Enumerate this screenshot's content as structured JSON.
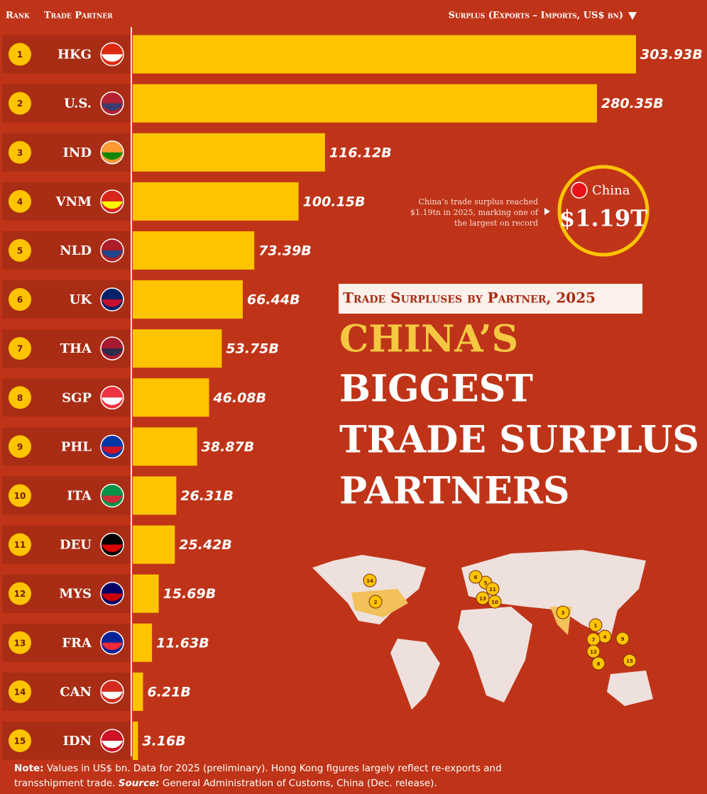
{
  "chart_data": {
    "type": "bar",
    "orientation": "horizontal",
    "title_lines": [
      "CHINA’S",
      "BIGGEST",
      "TRADE SURPLUS",
      "PARTNERS"
    ],
    "subtitle": "Trade Surpluses by Partner, 2025",
    "column_headers": {
      "rank": "Rank",
      "partner": "Trade Partner",
      "value": "Surplus (Exports – Imports, US$ bn)"
    },
    "ranks": [
      1,
      2,
      3,
      4,
      5,
      6,
      7,
      8,
      9,
      10,
      11,
      12,
      13,
      14,
      15
    ],
    "categories": [
      "HKG",
      "U.S.",
      "IND",
      "VNM",
      "NLD",
      "UK",
      "THA",
      "SGP",
      "PHL",
      "ITA",
      "DEU",
      "MYS",
      "FRA",
      "CAN",
      "IDN"
    ],
    "values": [
      303.93,
      280.35,
      116.12,
      100.15,
      73.39,
      66.44,
      53.75,
      46.08,
      38.87,
      26.31,
      25.42,
      15.69,
      11.63,
      6.21,
      3.16
    ],
    "value_labels": [
      "303.93B",
      "280.35B",
      "116.12B",
      "100.15B",
      "73.39B",
      "66.44B",
      "53.75B",
      "46.08B",
      "38.87B",
      "26.31B",
      "25.42B",
      "15.69B",
      "11.63B",
      "6.21B",
      "3.16B"
    ],
    "color": "#ffc400",
    "callout": {
      "annotation_lines": [
        "China’s trade surplus reached",
        "$1.19tn in 2025, marking one of",
        "the largest on record"
      ],
      "country": "China",
      "total": "$1.19T"
    }
  },
  "note": {
    "note_label": "Note:",
    "note_text": " Values in US$ bn. Data for 2025 (preliminary). Hong Kong figures largely reflect re-exports and transshipment trade. ",
    "source_label": "Source:",
    "source_text": " General Administration of Customs, China (Dec. release)."
  }
}
